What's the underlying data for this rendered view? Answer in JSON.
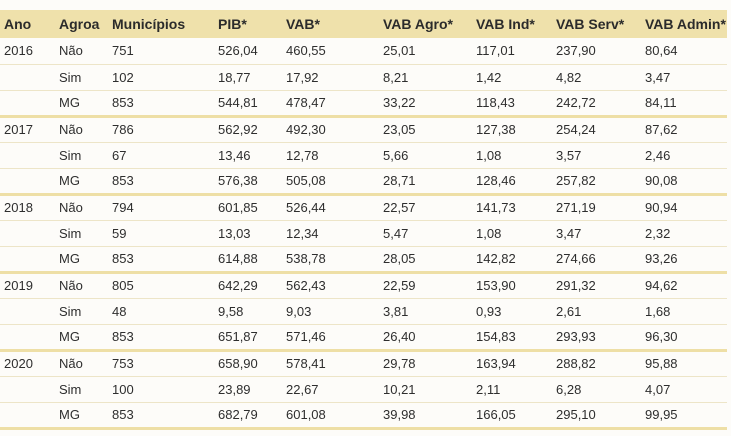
{
  "table": {
    "headers": [
      "Ano",
      "Agroa",
      "Municípios",
      "PIB*",
      "VAB*",
      "VAB Agro*",
      "VAB Ind*",
      "VAB Serv*",
      "VAB Admin*"
    ],
    "rows": [
      [
        "2016",
        "Não",
        "751",
        "526,04",
        "460,55",
        "25,01",
        "117,01",
        "237,90",
        "80,64"
      ],
      [
        "",
        "Sim",
        "102",
        "18,77",
        "17,92",
        "8,21",
        "1,42",
        "4,82",
        "3,47"
      ],
      [
        "",
        "MG",
        "853",
        "544,81",
        "478,47",
        "33,22",
        "118,43",
        "242,72",
        "84,11"
      ],
      [
        "2017",
        "Não",
        "786",
        "562,92",
        "492,30",
        "23,05",
        "127,38",
        "254,24",
        "87,62"
      ],
      [
        "",
        "Sim",
        "67",
        "13,46",
        "12,78",
        "5,66",
        "1,08",
        "3,57",
        "2,46"
      ],
      [
        "",
        "MG",
        "853",
        "576,38",
        "505,08",
        "28,71",
        "128,46",
        "257,82",
        "90,08"
      ],
      [
        "2018",
        "Não",
        "794",
        "601,85",
        "526,44",
        "22,57",
        "141,73",
        "271,19",
        "90,94"
      ],
      [
        "",
        "Sim",
        "59",
        "13,03",
        "12,34",
        "5,47",
        "1,08",
        "3,47",
        "2,32"
      ],
      [
        "",
        "MG",
        "853",
        "614,88",
        "538,78",
        "28,05",
        "142,82",
        "274,66",
        "93,26"
      ],
      [
        "2019",
        "Não",
        "805",
        "642,29",
        "562,43",
        "22,59",
        "153,90",
        "291,32",
        "94,62"
      ],
      [
        "",
        "Sim",
        "48",
        "9,58",
        "9,03",
        "3,81",
        "0,93",
        "2,61",
        "1,68"
      ],
      [
        "",
        "MG",
        "853",
        "651,87",
        "571,46",
        "26,40",
        "154,83",
        "293,93",
        "96,30"
      ],
      [
        "2020",
        "Não",
        "753",
        "658,90",
        "578,41",
        "29,78",
        "163,94",
        "288,82",
        "95,88"
      ],
      [
        "",
        "Sim",
        "100",
        "23,89",
        "22,67",
        "10,21",
        "2,11",
        "6,28",
        "4,07"
      ],
      [
        "",
        "MG",
        "853",
        "682,79",
        "601,08",
        "39,98",
        "166,05",
        "295,10",
        "99,95"
      ]
    ]
  },
  "colors": {
    "header_background": "#efe1ab",
    "group_separator": "#eedfa6",
    "row_separator": "#ede5c8",
    "text": "#2e2e2e"
  }
}
